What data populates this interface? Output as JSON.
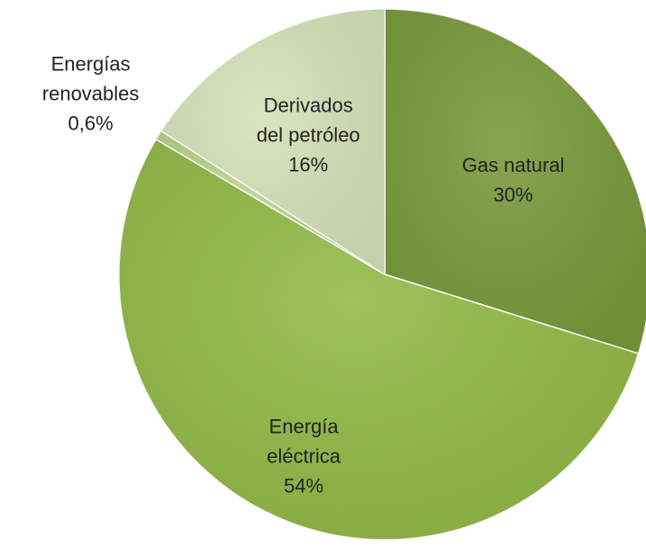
{
  "chart_data": {
    "type": "pie",
    "categories": [
      "Gas natural",
      "Energía eléctrica",
      "Energías renovables",
      "Derivados del petróleo"
    ],
    "values": [
      30,
      54,
      0.6,
      16
    ],
    "value_labels": [
      "30%",
      "54%",
      "0,6%",
      "16%"
    ],
    "colors": [
      "#789a3a",
      "#92ba46",
      "#b9d28a",
      "#d4e2b8"
    ]
  }
}
